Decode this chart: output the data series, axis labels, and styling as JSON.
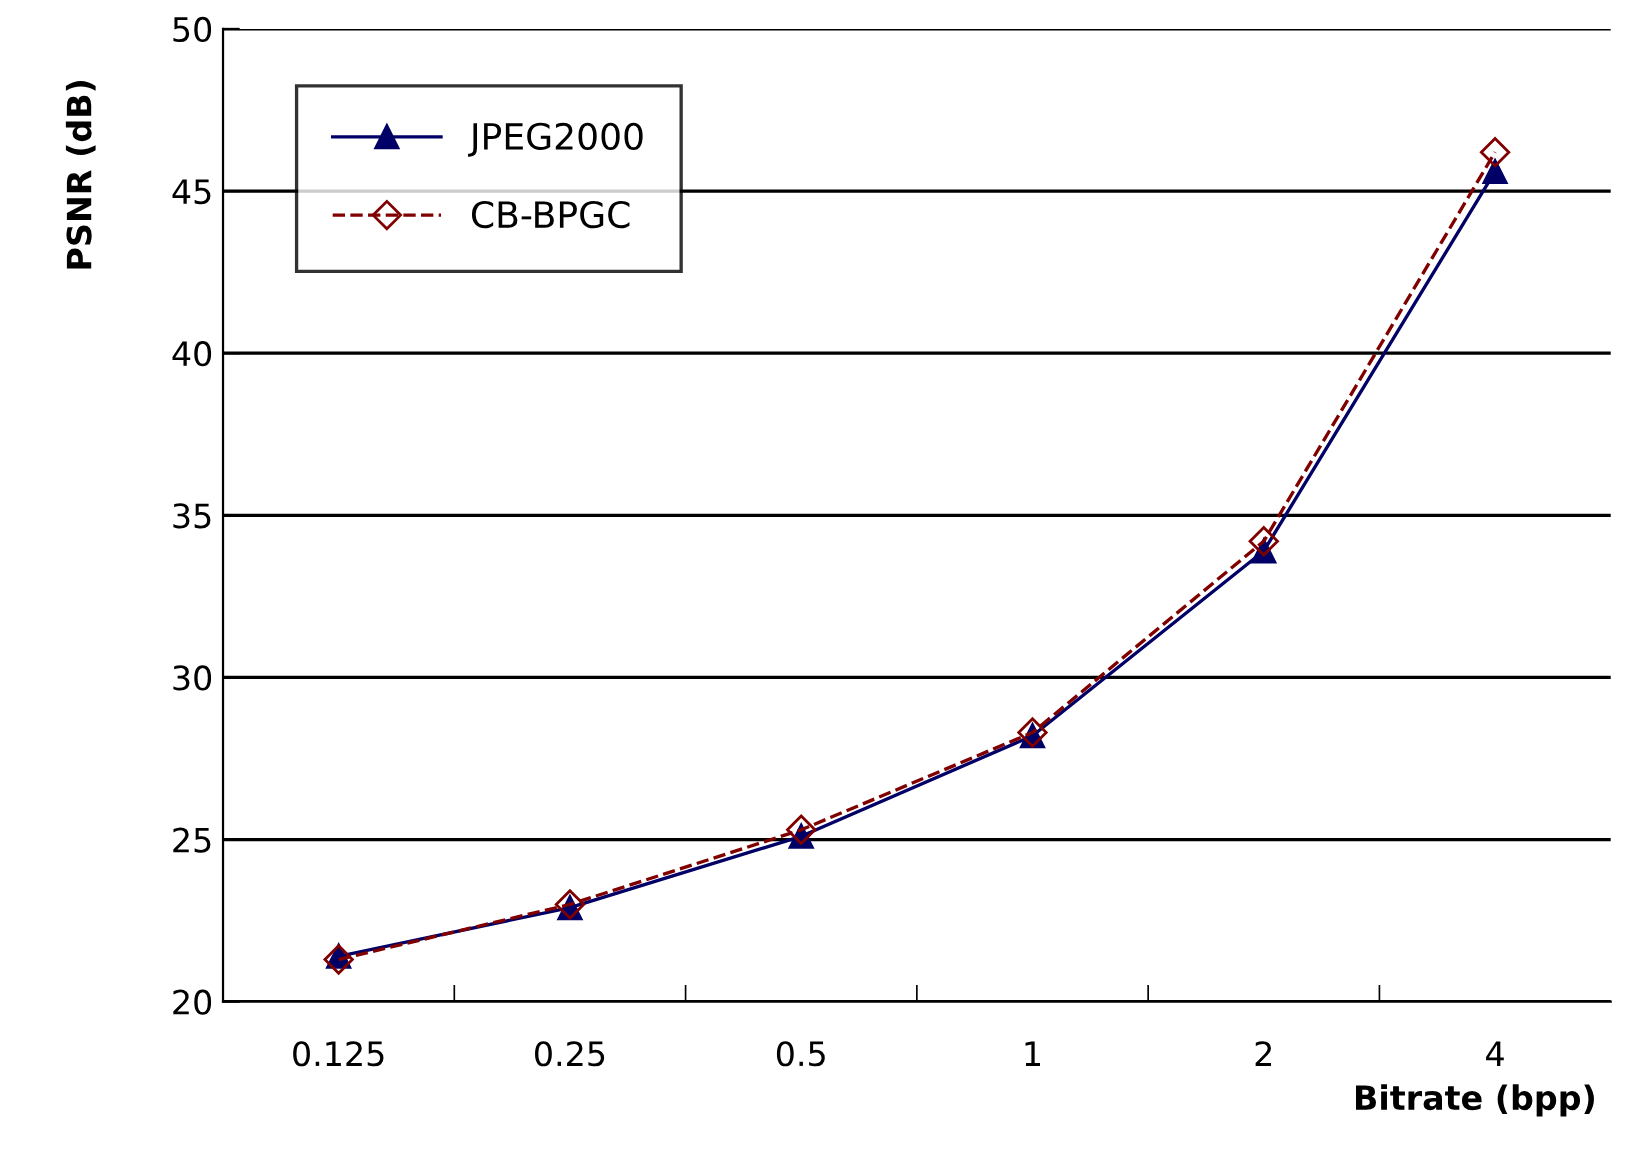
{
  "chart_data": {
    "type": "line",
    "xlabel": "Bitrate (bpp)",
    "ylabel": "PSNR (dB)",
    "categories": [
      "0.125",
      "0.25",
      "0.5",
      "1",
      "2",
      "4"
    ],
    "series": [
      {
        "name": "JPEG2000",
        "color": "#000066",
        "marker": "triangle",
        "line_style": "solid",
        "values": [
          21.4,
          22.9,
          25.1,
          28.2,
          33.9,
          45.6
        ]
      },
      {
        "name": "CB-BPGC",
        "color": "#800000",
        "marker": "diamond",
        "line_style": "dashed",
        "values": [
          21.3,
          23.0,
          25.3,
          28.3,
          34.2,
          46.2
        ]
      }
    ],
    "ylim": [
      20,
      50
    ],
    "yticks": [
      20,
      25,
      30,
      35,
      40,
      45,
      50
    ],
    "grid": "y",
    "legend": "top left"
  }
}
